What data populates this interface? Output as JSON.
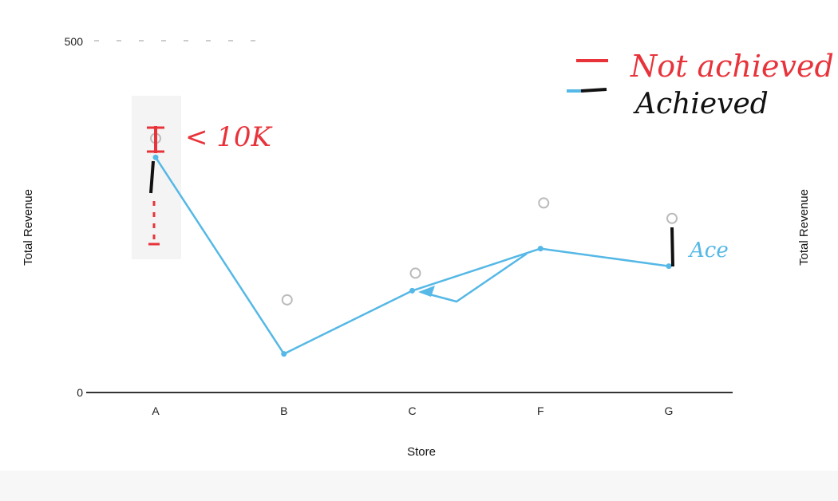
{
  "chart_data": {
    "type": "line",
    "title": "",
    "xlabel": "Store",
    "ylabel": "Total Revenue",
    "ylabel_right": "Total Revenue",
    "categories": [
      "A",
      "B",
      "C",
      "F",
      "G"
    ],
    "ylim": [
      0,
      500
    ],
    "yticks": [
      0,
      500
    ],
    "series": [
      {
        "values": [
          335,
          55,
          145,
          205,
          180
        ]
      }
    ],
    "target_markers": [
      362,
      132,
      170,
      270,
      248
    ],
    "annotations": {
      "legend_not_achieved": "Not achieved",
      "legend_achieved": "Achieved",
      "store_a_note": "< 10K",
      "store_g_note": "Ace"
    },
    "colors": {
      "line": "#55b8e6",
      "not_achieved": "#e8333a",
      "achieved": "#111111",
      "target": "#bbbbbb",
      "axis": "#333333"
    },
    "legend_position": "top-right",
    "grid": false
  }
}
